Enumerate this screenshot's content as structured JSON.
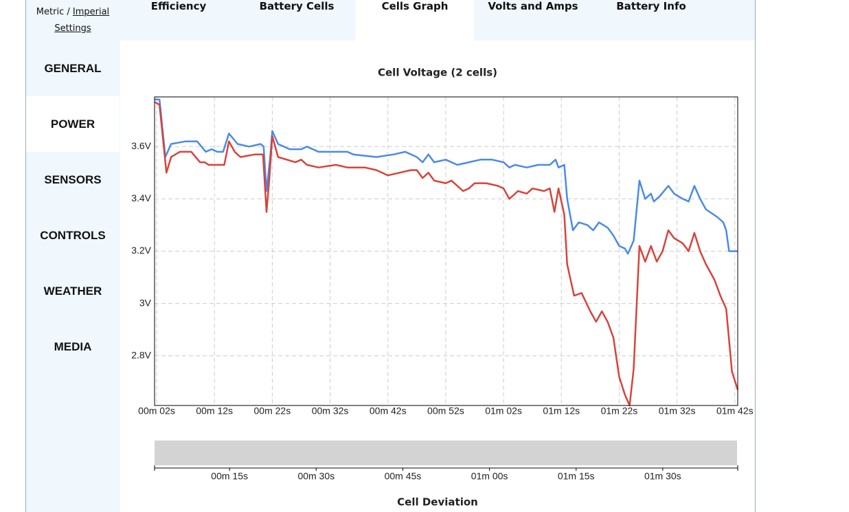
{
  "header": {
    "metric": "Metric",
    "separator": "/",
    "imperial": "Imperial",
    "settings": "Settings"
  },
  "tabs": {
    "items": [
      "Efficiency",
      "Battery Cells",
      "Cells Graph",
      "Volts and Amps",
      "Battery Info"
    ],
    "active": 2
  },
  "sidebar": {
    "items": [
      "GENERAL",
      "POWER",
      "SENSORS",
      "CONTROLS",
      "WEATHER",
      "MEDIA"
    ],
    "active": 1
  },
  "chart_data": [
    {
      "type": "line",
      "title": "Cell Voltage (2 cells)",
      "xlim": [
        1.64,
        102.5
      ],
      "ylim": [
        2.61,
        3.79
      ],
      "grid": true,
      "xticks": [
        {
          "value": 2,
          "label": "00m 02s"
        },
        {
          "value": 12,
          "label": "00m 12s"
        },
        {
          "value": 22,
          "label": "00m 22s"
        },
        {
          "value": 32,
          "label": "00m 32s"
        },
        {
          "value": 42,
          "label": "00m 42s"
        },
        {
          "value": 52,
          "label": "00m 52s"
        },
        {
          "value": 62,
          "label": "01m 02s"
        },
        {
          "value": 72,
          "label": "01m 12s"
        },
        {
          "value": 82,
          "label": "01m 22s"
        },
        {
          "value": 92,
          "label": "01m 32s"
        },
        {
          "value": 102,
          "label": "01m 42s"
        }
      ],
      "yticks": [
        {
          "value": 2.8,
          "label": "2.8V"
        },
        {
          "value": 3,
          "label": "3V"
        },
        {
          "value": 3.2,
          "label": "3.2V"
        },
        {
          "value": 3.4,
          "label": "3.4V"
        },
        {
          "value": 3.6,
          "label": "3.6V"
        }
      ],
      "series": [
        {
          "color": "#4a8ae6",
          "x": [
            1.7,
            2.5,
            3.5,
            4.5,
            7,
            9,
            10.5,
            11.5,
            12.5,
            13.5,
            14.5,
            16,
            18,
            20,
            20.5,
            21,
            21.6,
            22,
            23,
            25,
            27,
            28,
            30,
            33,
            35,
            36,
            40,
            43,
            45,
            47,
            48,
            49,
            50,
            52,
            54,
            56,
            58,
            60,
            62,
            63,
            64,
            66,
            68,
            70,
            71,
            71.5,
            72.5,
            73,
            74,
            75,
            76.5,
            77.5,
            78.5,
            80,
            81,
            82,
            83,
            83.5,
            84.5,
            85.5,
            86.5,
            87.5,
            88,
            89,
            90.5,
            91.5,
            93,
            94,
            95,
            96,
            97,
            99,
            100,
            100.5,
            101,
            102.5
          ],
          "values": [
            3.78,
            3.78,
            3.56,
            3.61,
            3.62,
            3.62,
            3.58,
            3.59,
            3.58,
            3.58,
            3.65,
            3.61,
            3.6,
            3.61,
            3.6,
            3.43,
            3.55,
            3.66,
            3.61,
            3.59,
            3.59,
            3.6,
            3.58,
            3.58,
            3.58,
            3.57,
            3.56,
            3.57,
            3.58,
            3.56,
            3.54,
            3.57,
            3.54,
            3.55,
            3.53,
            3.54,
            3.55,
            3.55,
            3.54,
            3.52,
            3.53,
            3.52,
            3.53,
            3.53,
            3.55,
            3.52,
            3.53,
            3.4,
            3.28,
            3.31,
            3.3,
            3.28,
            3.31,
            3.29,
            3.26,
            3.22,
            3.21,
            3.19,
            3.24,
            3.47,
            3.4,
            3.42,
            3.39,
            3.41,
            3.45,
            3.42,
            3.4,
            3.39,
            3.45,
            3.4,
            3.36,
            3.33,
            3.31,
            3.28,
            3.2,
            3.2
          ]
        },
        {
          "color": "#d6433b",
          "x": [
            1.7,
            2.5,
            3.7,
            4.5,
            6,
            8,
            9.5,
            10.3,
            11,
            12.5,
            13.7,
            14.5,
            15.5,
            16.5,
            19,
            20.4,
            21,
            21.5,
            22,
            23,
            26,
            27,
            28,
            30,
            33,
            35,
            38,
            40,
            42,
            44,
            46,
            47,
            48,
            49,
            50,
            52,
            53,
            55,
            56,
            57,
            59,
            61,
            62,
            63,
            64.5,
            66,
            67,
            69,
            70,
            70.8,
            71.5,
            72.5,
            73,
            74.2,
            75.5,
            77,
            78,
            79,
            80,
            81,
            82,
            83,
            83.8,
            84.5,
            85.5,
            86.5,
            87.5,
            88.5,
            89.5,
            90.5,
            91.5,
            93,
            94,
            95,
            96,
            97,
            98.5,
            99.5,
            100.5,
            101.5,
            102.5
          ],
          "values": [
            3.77,
            3.76,
            3.5,
            3.56,
            3.58,
            3.58,
            3.54,
            3.54,
            3.53,
            3.53,
            3.53,
            3.62,
            3.58,
            3.56,
            3.57,
            3.57,
            3.35,
            3.48,
            3.64,
            3.56,
            3.54,
            3.55,
            3.53,
            3.52,
            3.53,
            3.52,
            3.52,
            3.51,
            3.49,
            3.5,
            3.51,
            3.51,
            3.48,
            3.5,
            3.47,
            3.46,
            3.47,
            3.43,
            3.44,
            3.46,
            3.46,
            3.45,
            3.44,
            3.4,
            3.43,
            3.42,
            3.44,
            3.43,
            3.44,
            3.35,
            3.44,
            3.34,
            3.15,
            3.03,
            3.04,
            2.97,
            2.93,
            2.97,
            2.93,
            2.87,
            2.72,
            2.65,
            2.61,
            2.75,
            3.22,
            3.16,
            3.22,
            3.16,
            3.2,
            3.28,
            3.25,
            3.23,
            3.2,
            3.27,
            3.2,
            3.15,
            3.09,
            3.03,
            2.98,
            2.74,
            2.67
          ]
        }
      ],
      "navigator": {
        "xlim": [
          2.02,
          102.98
        ],
        "xticks": [
          {
            "value": 15,
            "label": "00m 15s"
          },
          {
            "value": 30,
            "label": "00m 30s"
          },
          {
            "value": 45,
            "label": "00m 45s"
          },
          {
            "value": 60,
            "label": "01m 00s"
          },
          {
            "value": 75,
            "label": "01m 15s"
          },
          {
            "value": 90,
            "label": "01m 30s"
          }
        ]
      }
    },
    {
      "type": "line",
      "title": "Cell Deviation"
    }
  ]
}
